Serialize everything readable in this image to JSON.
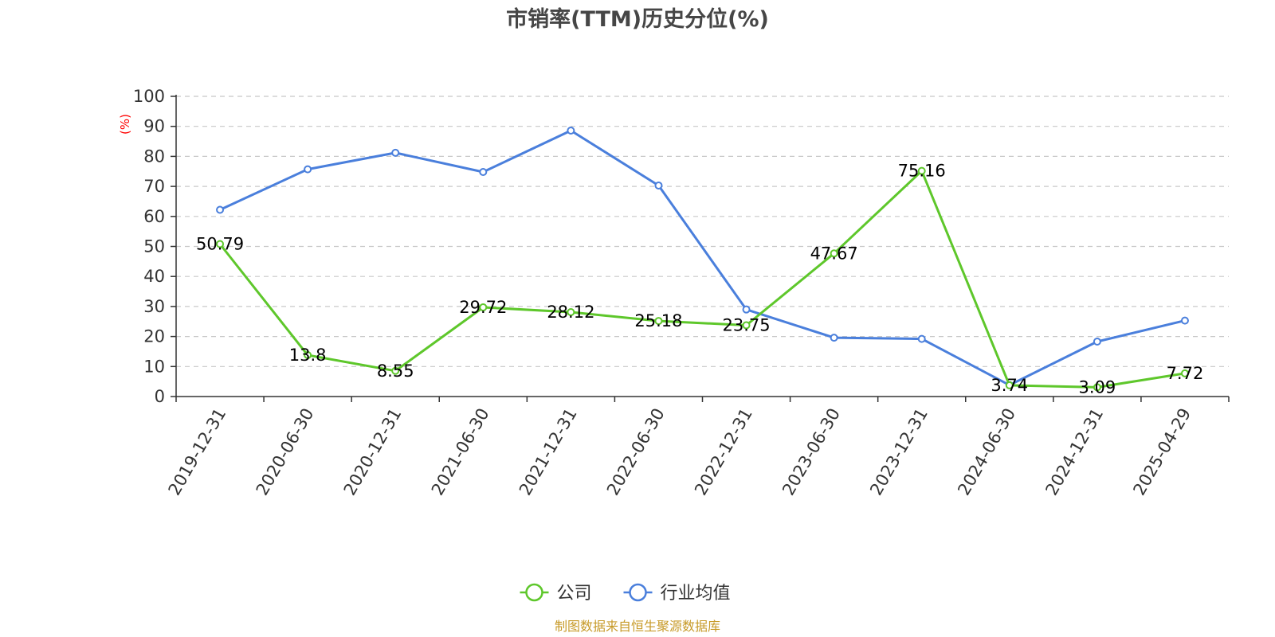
{
  "chart_data": {
    "type": "line",
    "title": "市销率(TTM)历史分位(%)",
    "ylabel": "(%)",
    "ylim": [
      0,
      100
    ],
    "yticks": [
      0,
      10,
      20,
      30,
      40,
      50,
      60,
      70,
      80,
      90,
      100
    ],
    "grid": true,
    "legend_position": "bottom-center",
    "categories": [
      "2019-12-31",
      "2020-06-30",
      "2020-12-31",
      "2021-06-30",
      "2021-12-31",
      "2022-06-30",
      "2022-12-31",
      "2023-06-30",
      "2023-12-31",
      "2024-06-30",
      "2024-12-31",
      "2025-04-29"
    ],
    "series": [
      {
        "name": "公司",
        "color": "#5ec72b",
        "values": [
          50.79,
          13.8,
          8.55,
          29.72,
          28.12,
          25.18,
          23.75,
          47.67,
          75.16,
          3.74,
          3.09,
          7.72
        ],
        "show_labels": true
      },
      {
        "name": "行业均值",
        "color": "#4a7fdc",
        "values": [
          62.2,
          75.7,
          81.2,
          74.8,
          88.6,
          70.3,
          29.0,
          19.6,
          19.2,
          3.8,
          18.3,
          25.3
        ],
        "show_labels": false
      }
    ]
  },
  "source": "制图数据来自恒生聚源数据库"
}
